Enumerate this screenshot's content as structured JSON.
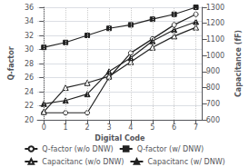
{
  "chart_data": {
    "type": "line",
    "x": [
      0,
      1,
      2,
      3,
      4,
      5,
      6,
      7
    ],
    "xlim": [
      -0.3,
      7.3
    ],
    "xticks": [
      0,
      1,
      2,
      3,
      4,
      5,
      6,
      7
    ],
    "xlabel": "Digital Code",
    "ylabel": "Q-factor",
    "y2label": "Capacitance (fF)",
    "ylim": [
      20,
      36
    ],
    "yticks": [
      20,
      22,
      24,
      26,
      28,
      30,
      32,
      34,
      36
    ],
    "y2lim": [
      600,
      1300
    ],
    "y2ticks": [
      600,
      700,
      800,
      900,
      1000,
      1100,
      1200,
      1300
    ],
    "grid": true,
    "legend": "bottom",
    "series": [
      {
        "name": "Q-factor (w/o DNW)",
        "color": "#222222",
        "marker": "circle_open",
        "values": [
          21.0,
          21.0,
          21.0,
          26.0,
          29.5,
          31.5,
          33.5,
          35.0
        ]
      },
      {
        "name": "Q-factor (w/ DNW)",
        "color": "#222222",
        "marker": "square",
        "values": [
          30.3,
          31.0,
          32.0,
          33.0,
          33.5,
          34.3,
          35.0,
          36.0
        ]
      },
      {
        "name": "Capacitanc (w/o DNW)",
        "color": "#222222",
        "marker": "triangle_open",
        "axis": "y2",
        "values": [
          650,
          800,
          830,
          870,
          960,
          1050,
          1120,
          1175
        ]
      },
      {
        "name": "Capacitanc (w/ DNW)",
        "color": "#222222",
        "marker": "triangle",
        "axis": "y2",
        "values": [
          700,
          720,
          760,
          900,
          985,
          1090,
          1160,
          1210
        ]
      }
    ]
  }
}
